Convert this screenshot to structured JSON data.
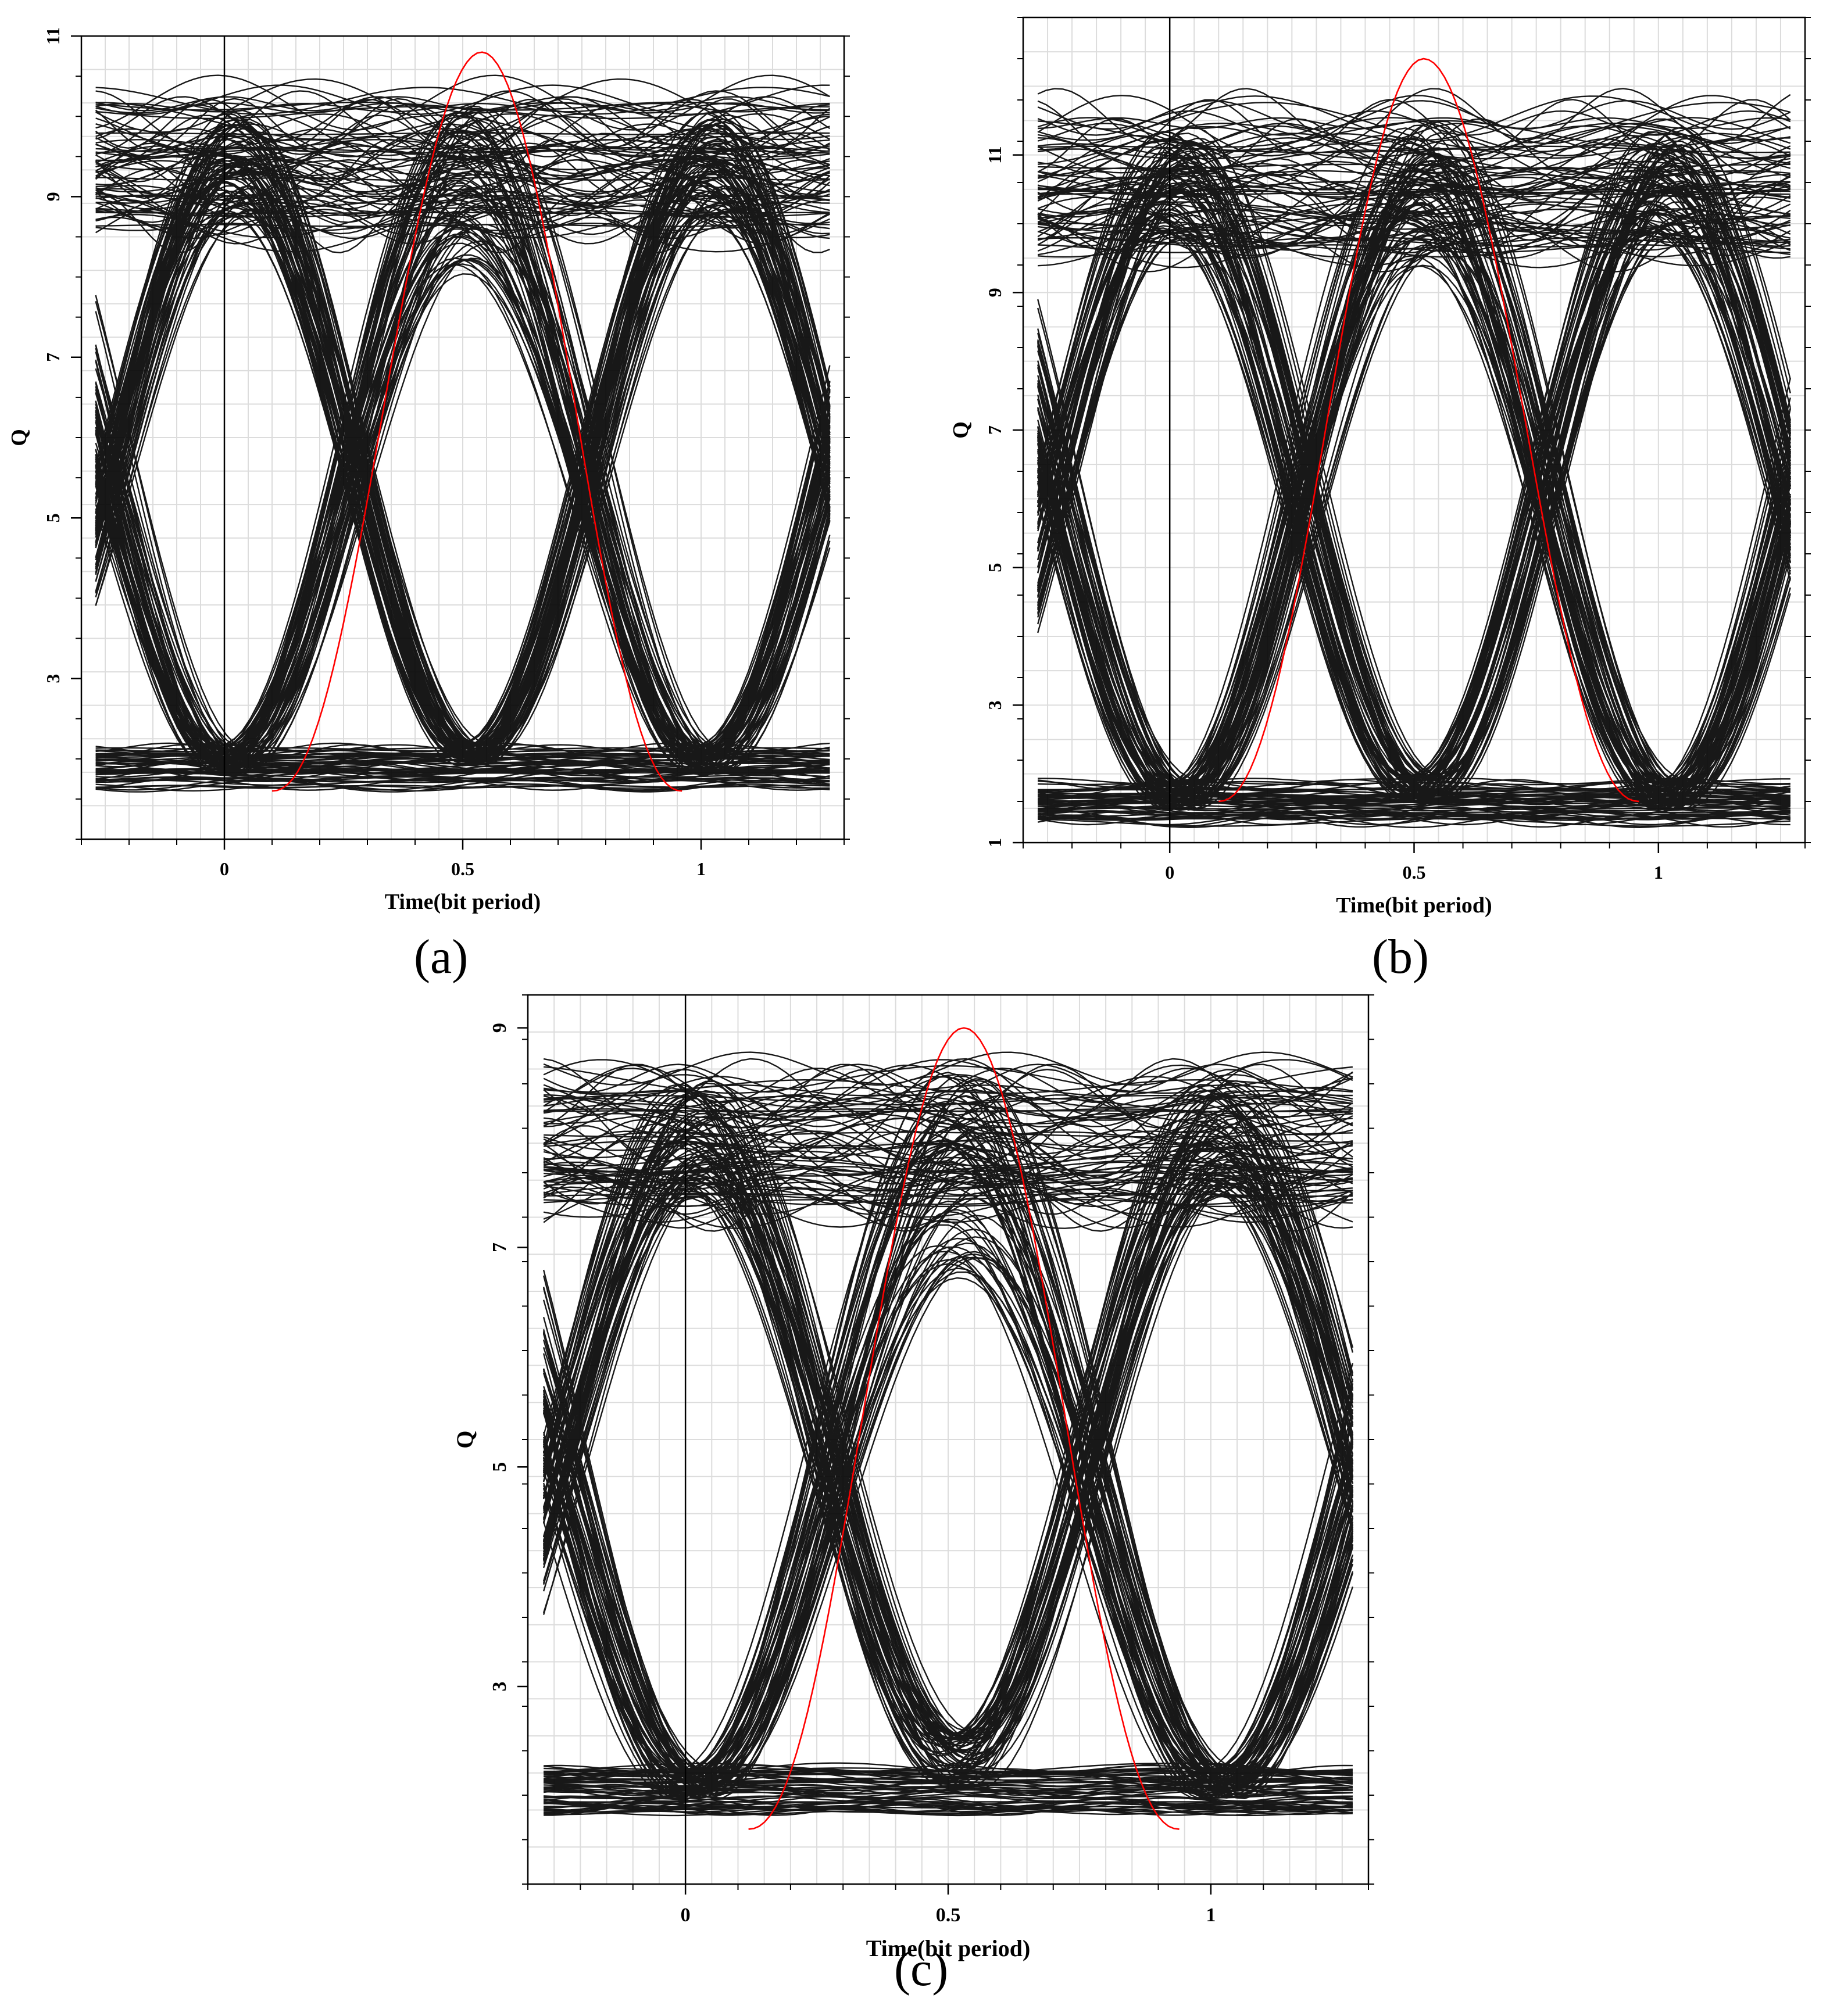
{
  "chart_data": [
    {
      "type": "line",
      "panel_label": "(a)",
      "xlabel": "Time(bit period)",
      "ylabel": "Q",
      "xlim": [
        -0.3,
        1.3
      ],
      "ylim": [
        1,
        11
      ],
      "xticks": [
        "0",
        "0.5",
        "1"
      ],
      "yticks": [
        "3",
        "5",
        "7",
        "9",
        "11"
      ],
      "eye": {
        "high": 9.4,
        "low": 1.9,
        "crossing": 5.7,
        "eye_opening_min": 8.0,
        "eye_closing_max": 2.2
      },
      "q_factor_curve": {
        "x": [
          0.1,
          0.54,
          0.96
        ],
        "peak_q": 10.8,
        "base_q": 1.6
      },
      "grid": true,
      "series": [
        {
          "name": "",
          "color": "#000000"
        },
        {
          "name": "",
          "color": "#ff0000"
        }
      ]
    },
    {
      "type": "line",
      "panel_label": "(b)",
      "xlabel": "Time(bit period)",
      "ylabel": "Q",
      "xlim": [
        -0.3,
        1.3
      ],
      "ylim": [
        1,
        13
      ],
      "xticks": [
        "0",
        "0.5",
        "1"
      ],
      "yticks": [
        "1",
        "3",
        "5",
        "7",
        "9",
        "11"
      ],
      "eye": {
        "high": 10.6,
        "low": 1.6,
        "crossing": 6.2,
        "eye_opening_min": 9.3,
        "eye_closing_max": 2.0
      },
      "q_factor_curve": {
        "x": [
          0.1,
          0.52,
          0.96
        ],
        "peak_q": 12.4,
        "base_q": 1.6
      },
      "grid": true,
      "series": [
        {
          "name": "",
          "color": "#000000"
        },
        {
          "name": "",
          "color": "#ff0000"
        }
      ]
    },
    {
      "type": "line",
      "panel_label": "(c)",
      "xlabel": "Time(bit period)",
      "ylabel": "Q",
      "xlim": [
        -0.3,
        1.3
      ],
      "ylim": [
        1.2,
        9.3
      ],
      "xticks": [
        "0",
        "0.5",
        "1"
      ],
      "yticks": [
        "3",
        "5",
        "7",
        "9"
      ],
      "eye": {
        "high": 8.0,
        "low": 2.05,
        "crossing": 5.0,
        "eye_opening_min": 6.7,
        "eye_closing_max": 2.6
      },
      "q_factor_curve": {
        "x": [
          0.12,
          0.53,
          0.94
        ],
        "peak_q": 9.0,
        "base_q": 1.7
      },
      "grid": true,
      "series": [
        {
          "name": "",
          "color": "#000000"
        },
        {
          "name": "",
          "color": "#ff0000"
        }
      ]
    }
  ]
}
